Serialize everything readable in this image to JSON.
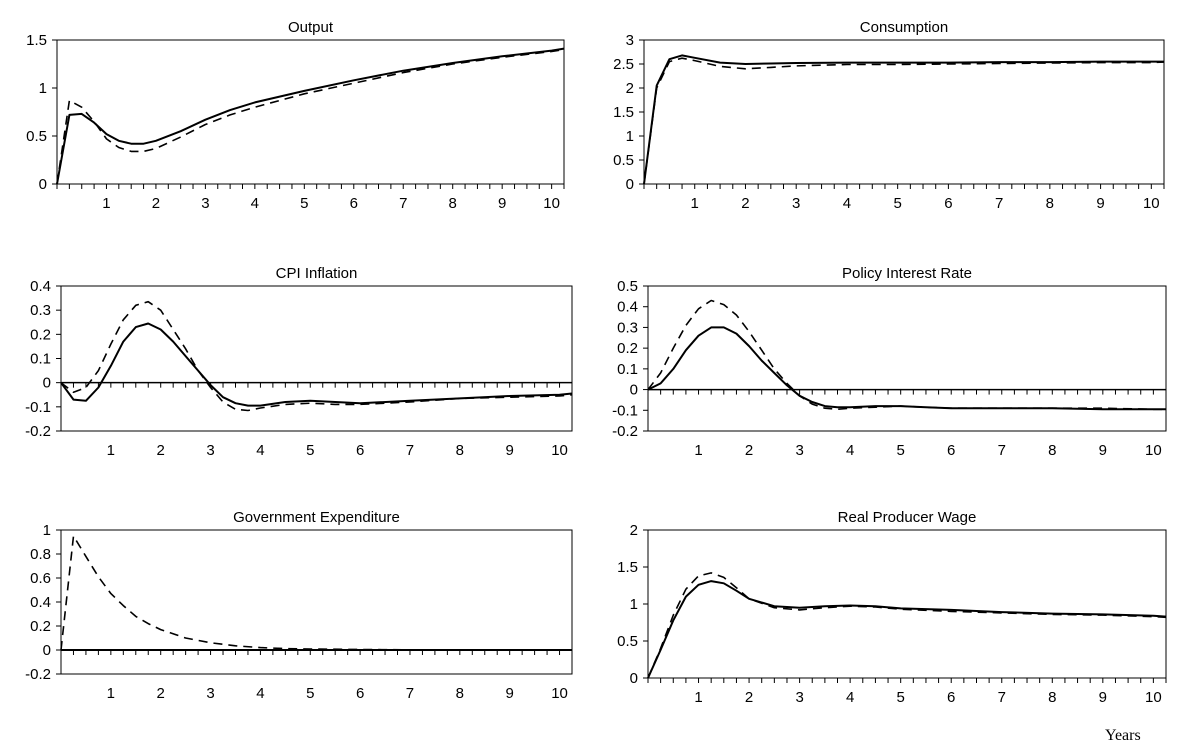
{
  "footer": {
    "x_unit_label": "Years"
  },
  "chart_data": [
    {
      "type": "line",
      "title": "Output",
      "xlabel": "",
      "ylabel": "",
      "xlim": [
        0,
        10.25
      ],
      "ylim": [
        0,
        1.5
      ],
      "yticks": [
        "0",
        "0.5",
        "1",
        "1.5"
      ],
      "xticks": [
        "1",
        "2",
        "3",
        "4",
        "5",
        "6",
        "7",
        "8",
        "9",
        "10"
      ],
      "zero_line": false,
      "grid": false,
      "legend": "none",
      "series": [
        {
          "style": "solid",
          "x": [
            0,
            0.25,
            0.5,
            0.75,
            1,
            1.25,
            1.5,
            1.75,
            2,
            2.5,
            3,
            3.5,
            4,
            5,
            6,
            7,
            8,
            9,
            10,
            10.25
          ],
          "y": [
            0,
            0.72,
            0.73,
            0.64,
            0.52,
            0.45,
            0.42,
            0.42,
            0.45,
            0.55,
            0.67,
            0.77,
            0.85,
            0.97,
            1.08,
            1.18,
            1.26,
            1.33,
            1.39,
            1.41
          ]
        },
        {
          "style": "dashed",
          "x": [
            0,
            0.25,
            0.5,
            0.75,
            1,
            1.25,
            1.5,
            1.75,
            2,
            2.5,
            3,
            3.5,
            4,
            5,
            6,
            7,
            8,
            9,
            10,
            10.25
          ],
          "y": [
            0,
            0.87,
            0.8,
            0.65,
            0.47,
            0.38,
            0.34,
            0.34,
            0.37,
            0.49,
            0.62,
            0.72,
            0.8,
            0.94,
            1.05,
            1.16,
            1.25,
            1.32,
            1.38,
            1.4
          ]
        }
      ]
    },
    {
      "type": "line",
      "title": "Consumption",
      "xlabel": "",
      "ylabel": "",
      "xlim": [
        0,
        10.25
      ],
      "ylim": [
        0,
        3
      ],
      "yticks": [
        "0",
        "0.5",
        "1",
        "1.5",
        "2",
        "2.5",
        "3"
      ],
      "xticks": [
        "1",
        "2",
        "3",
        "4",
        "5",
        "6",
        "7",
        "8",
        "9",
        "10"
      ],
      "zero_line": false,
      "grid": false,
      "legend": "none",
      "series": [
        {
          "style": "solid",
          "x": [
            0,
            0.25,
            0.5,
            0.75,
            1,
            1.5,
            2,
            2.5,
            3,
            4,
            5,
            6,
            7,
            8,
            9,
            10,
            10.25
          ],
          "y": [
            0,
            2.05,
            2.6,
            2.68,
            2.63,
            2.53,
            2.5,
            2.51,
            2.52,
            2.53,
            2.53,
            2.53,
            2.54,
            2.54,
            2.55,
            2.55,
            2.55
          ]
        },
        {
          "style": "dashed",
          "x": [
            0,
            0.25,
            0.5,
            0.75,
            1,
            1.5,
            2,
            2.5,
            3,
            4,
            5,
            6,
            7,
            8,
            9,
            10,
            10.25
          ],
          "y": [
            0,
            2.0,
            2.55,
            2.62,
            2.57,
            2.45,
            2.4,
            2.43,
            2.46,
            2.49,
            2.49,
            2.5,
            2.51,
            2.52,
            2.53,
            2.53,
            2.54
          ]
        }
      ]
    },
    {
      "type": "line",
      "title": "CPI Inflation",
      "xlabel": "",
      "ylabel": "",
      "xlim": [
        0,
        10.25
      ],
      "ylim": [
        -0.2,
        0.4
      ],
      "yticks": [
        "-0.2",
        "-0.1",
        "0",
        "0.1",
        "0.2",
        "0.3",
        "0.4"
      ],
      "xticks": [
        "1",
        "2",
        "3",
        "4",
        "5",
        "6",
        "7",
        "8",
        "9",
        "10"
      ],
      "zero_line": true,
      "grid": false,
      "legend": "none",
      "series": [
        {
          "style": "solid",
          "x": [
            0,
            0.25,
            0.5,
            0.75,
            1,
            1.25,
            1.5,
            1.75,
            2,
            2.25,
            2.5,
            2.75,
            3,
            3.25,
            3.5,
            3.75,
            4,
            4.5,
            5,
            5.5,
            6,
            7,
            8,
            9,
            10,
            10.25
          ],
          "y": [
            0,
            -0.07,
            -0.075,
            -0.02,
            0.07,
            0.17,
            0.23,
            0.245,
            0.22,
            0.17,
            0.11,
            0.05,
            -0.01,
            -0.06,
            -0.085,
            -0.095,
            -0.095,
            -0.08,
            -0.075,
            -0.08,
            -0.085,
            -0.075,
            -0.065,
            -0.055,
            -0.05,
            -0.045
          ]
        },
        {
          "style": "dashed",
          "x": [
            0,
            0.25,
            0.5,
            0.75,
            1,
            1.25,
            1.5,
            1.75,
            2,
            2.25,
            2.5,
            2.75,
            3,
            3.25,
            3.5,
            3.75,
            4,
            4.5,
            5,
            5.5,
            6,
            7,
            8,
            9,
            10,
            10.25
          ],
          "y": [
            0,
            -0.04,
            -0.02,
            0.05,
            0.16,
            0.26,
            0.32,
            0.335,
            0.3,
            0.22,
            0.14,
            0.05,
            -0.02,
            -0.08,
            -0.11,
            -0.115,
            -0.105,
            -0.09,
            -0.085,
            -0.09,
            -0.09,
            -0.08,
            -0.065,
            -0.06,
            -0.055,
            -0.05
          ]
        }
      ]
    },
    {
      "type": "line",
      "title": "Policy Interest Rate",
      "xlabel": "",
      "ylabel": "",
      "xlim": [
        0,
        10.25
      ],
      "ylim": [
        -0.2,
        0.5
      ],
      "yticks": [
        "-0.2",
        "-0.1",
        "0",
        "0.1",
        "0.2",
        "0.3",
        "0.4",
        "0.5"
      ],
      "xticks": [
        "1",
        "2",
        "3",
        "4",
        "5",
        "6",
        "7",
        "8",
        "9",
        "10"
      ],
      "zero_line": true,
      "grid": false,
      "legend": "none",
      "series": [
        {
          "style": "solid",
          "x": [
            0,
            0.25,
            0.5,
            0.75,
            1,
            1.25,
            1.5,
            1.75,
            2,
            2.25,
            2.5,
            2.75,
            3,
            3.25,
            3.5,
            3.75,
            4,
            4.5,
            5,
            5.5,
            6,
            7,
            8,
            9,
            10,
            10.25
          ],
          "y": [
            0,
            0.03,
            0.1,
            0.19,
            0.26,
            0.3,
            0.3,
            0.27,
            0.21,
            0.14,
            0.08,
            0.02,
            -0.03,
            -0.06,
            -0.08,
            -0.085,
            -0.085,
            -0.08,
            -0.08,
            -0.085,
            -0.09,
            -0.09,
            -0.09,
            -0.095,
            -0.095,
            -0.095
          ]
        },
        {
          "style": "dashed",
          "x": [
            0,
            0.25,
            0.5,
            0.75,
            1,
            1.25,
            1.5,
            1.75,
            2,
            2.25,
            2.5,
            2.75,
            3,
            3.25,
            3.5,
            3.75,
            4,
            4.5,
            5,
            5.5,
            6,
            7,
            8,
            9,
            10,
            10.25
          ],
          "y": [
            0,
            0.08,
            0.2,
            0.31,
            0.39,
            0.43,
            0.41,
            0.36,
            0.28,
            0.19,
            0.1,
            0.03,
            -0.03,
            -0.07,
            -0.09,
            -0.095,
            -0.09,
            -0.085,
            -0.08,
            -0.085,
            -0.09,
            -0.09,
            -0.09,
            -0.09,
            -0.095,
            -0.095
          ]
        }
      ]
    },
    {
      "type": "line",
      "title": "Government Expenditure",
      "xlabel": "",
      "ylabel": "",
      "xlim": [
        0,
        10.25
      ],
      "ylim": [
        -0.2,
        1
      ],
      "yticks": [
        "-0.2",
        "0",
        "0.2",
        "0.4",
        "0.6",
        "0.8",
        "1"
      ],
      "xticks": [
        "1",
        "2",
        "3",
        "4",
        "5",
        "6",
        "7",
        "8",
        "9",
        "10"
      ],
      "zero_line": true,
      "grid": false,
      "legend": "none",
      "series": [
        {
          "style": "solid",
          "x": [
            0,
            10.25
          ],
          "y": [
            0,
            0
          ]
        },
        {
          "style": "dashed",
          "x": [
            0,
            0.25,
            0.5,
            0.75,
            1,
            1.25,
            1.5,
            1.75,
            2,
            2.5,
            3,
            3.5,
            4,
            4.5,
            5,
            6,
            7,
            8,
            9,
            10,
            10.25
          ],
          "y": [
            0,
            0.95,
            0.78,
            0.61,
            0.47,
            0.37,
            0.28,
            0.22,
            0.17,
            0.1,
            0.06,
            0.035,
            0.02,
            0.012,
            0.008,
            0.004,
            0.002,
            0.001,
            0,
            0,
            0
          ]
        }
      ]
    },
    {
      "type": "line",
      "title": "Real Producer Wage",
      "xlabel": "",
      "ylabel": "",
      "xlim": [
        0,
        10.25
      ],
      "ylim": [
        0,
        2
      ],
      "yticks": [
        "0",
        "0.5",
        "1",
        "1.5",
        "2"
      ],
      "xticks": [
        "1",
        "2",
        "3",
        "4",
        "5",
        "6",
        "7",
        "8",
        "9",
        "10"
      ],
      "zero_line": false,
      "grid": false,
      "legend": "none",
      "series": [
        {
          "style": "solid",
          "x": [
            0,
            0.25,
            0.5,
            0.75,
            1,
            1.25,
            1.5,
            1.75,
            2,
            2.5,
            3,
            3.5,
            4,
            4.5,
            5,
            6,
            7,
            8,
            9,
            10,
            10.25
          ],
          "y": [
            0,
            0.38,
            0.78,
            1.1,
            1.26,
            1.31,
            1.28,
            1.18,
            1.07,
            0.97,
            0.95,
            0.97,
            0.98,
            0.97,
            0.94,
            0.92,
            0.89,
            0.87,
            0.86,
            0.84,
            0.83
          ]
        },
        {
          "style": "dashed",
          "x": [
            0,
            0.25,
            0.5,
            0.75,
            1,
            1.25,
            1.5,
            1.75,
            2,
            2.5,
            3,
            3.5,
            4,
            4.5,
            5,
            6,
            7,
            8,
            9,
            10,
            10.25
          ],
          "y": [
            0,
            0.4,
            0.85,
            1.2,
            1.38,
            1.42,
            1.36,
            1.22,
            1.07,
            0.95,
            0.92,
            0.95,
            0.97,
            0.96,
            0.93,
            0.9,
            0.88,
            0.86,
            0.85,
            0.83,
            0.82
          ]
        }
      ]
    }
  ]
}
